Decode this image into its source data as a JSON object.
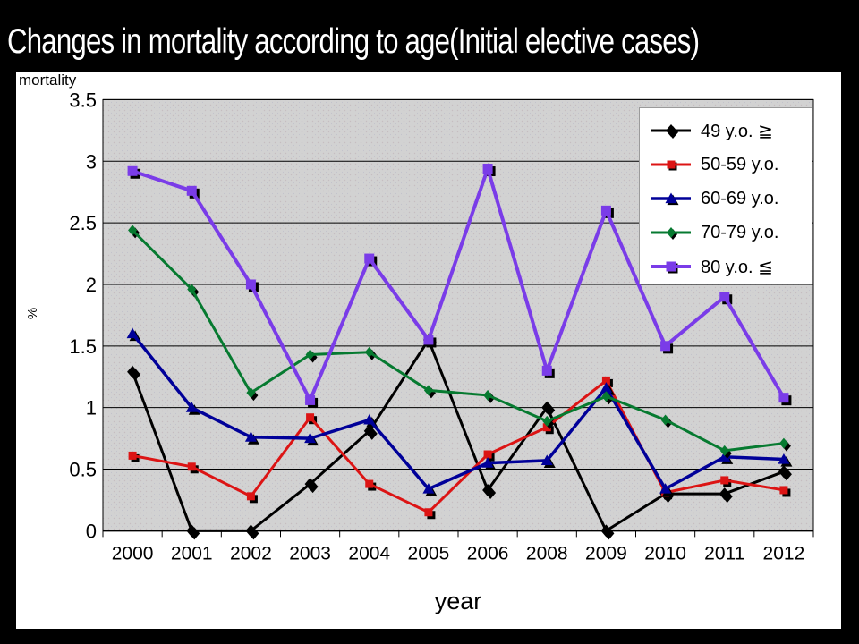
{
  "header": {
    "title": "Changes in mortality according to age(Initial elective cases)"
  },
  "chart_data": {
    "type": "line",
    "axis_top_label": "mortality",
    "y_unit_label": "%",
    "xlabel": "year",
    "x": [
      "2000",
      "2001",
      "2002",
      "2003",
      "2004",
      "2005",
      "2006",
      "2008",
      "2009",
      "2010",
      "2011",
      "2012"
    ],
    "ylim": [
      0,
      3.5
    ],
    "ytick_labels": [
      "3.5",
      "3",
      "2.5",
      "2",
      "1.5",
      "1",
      "0.5",
      "0"
    ],
    "grid": true,
    "legend_position": "top-right",
    "plot_bg": "#d2d2d2",
    "series": [
      {
        "name": "49 y.o. ≧",
        "color": "#000000",
        "marker": "diamond",
        "marker_size": 6,
        "line_width": 3,
        "values": [
          1.29,
          0,
          0,
          0.38,
          0.81,
          1.55,
          0.33,
          1.0,
          0,
          0.3,
          0.3,
          0.48
        ]
      },
      {
        "name": "50-59 y.o.",
        "color": "#dc1414",
        "marker": "square",
        "marker_size": 4.5,
        "line_width": 3,
        "values": [
          0.61,
          0.52,
          0.28,
          0.92,
          0.38,
          0.15,
          0.62,
          0.84,
          1.22,
          0.31,
          0.41,
          0.33
        ]
      },
      {
        "name": "60-69 y.o.",
        "color": "#000099",
        "marker": "triangle",
        "marker_size": 6.5,
        "line_width": 3.5,
        "values": [
          1.6,
          1.0,
          0.76,
          0.75,
          0.9,
          0.34,
          0.55,
          0.57,
          1.16,
          0.34,
          0.6,
          0.58
        ]
      },
      {
        "name": "70-79 y.o.",
        "color": "#067a30",
        "marker": "diamond",
        "marker_size": 5,
        "line_width": 3,
        "values": [
          2.44,
          1.96,
          1.12,
          1.43,
          1.45,
          1.14,
          1.1,
          0.89,
          1.09,
          0.9,
          0.65,
          0.71
        ]
      },
      {
        "name": "80 y.o. ≦",
        "color": "#7a3ce8",
        "marker": "square",
        "marker_size": 5.5,
        "line_width": 4,
        "values": [
          2.92,
          2.76,
          2.0,
          1.06,
          2.21,
          1.55,
          2.94,
          1.3,
          2.6,
          1.5,
          1.9,
          1.08
        ]
      }
    ]
  }
}
